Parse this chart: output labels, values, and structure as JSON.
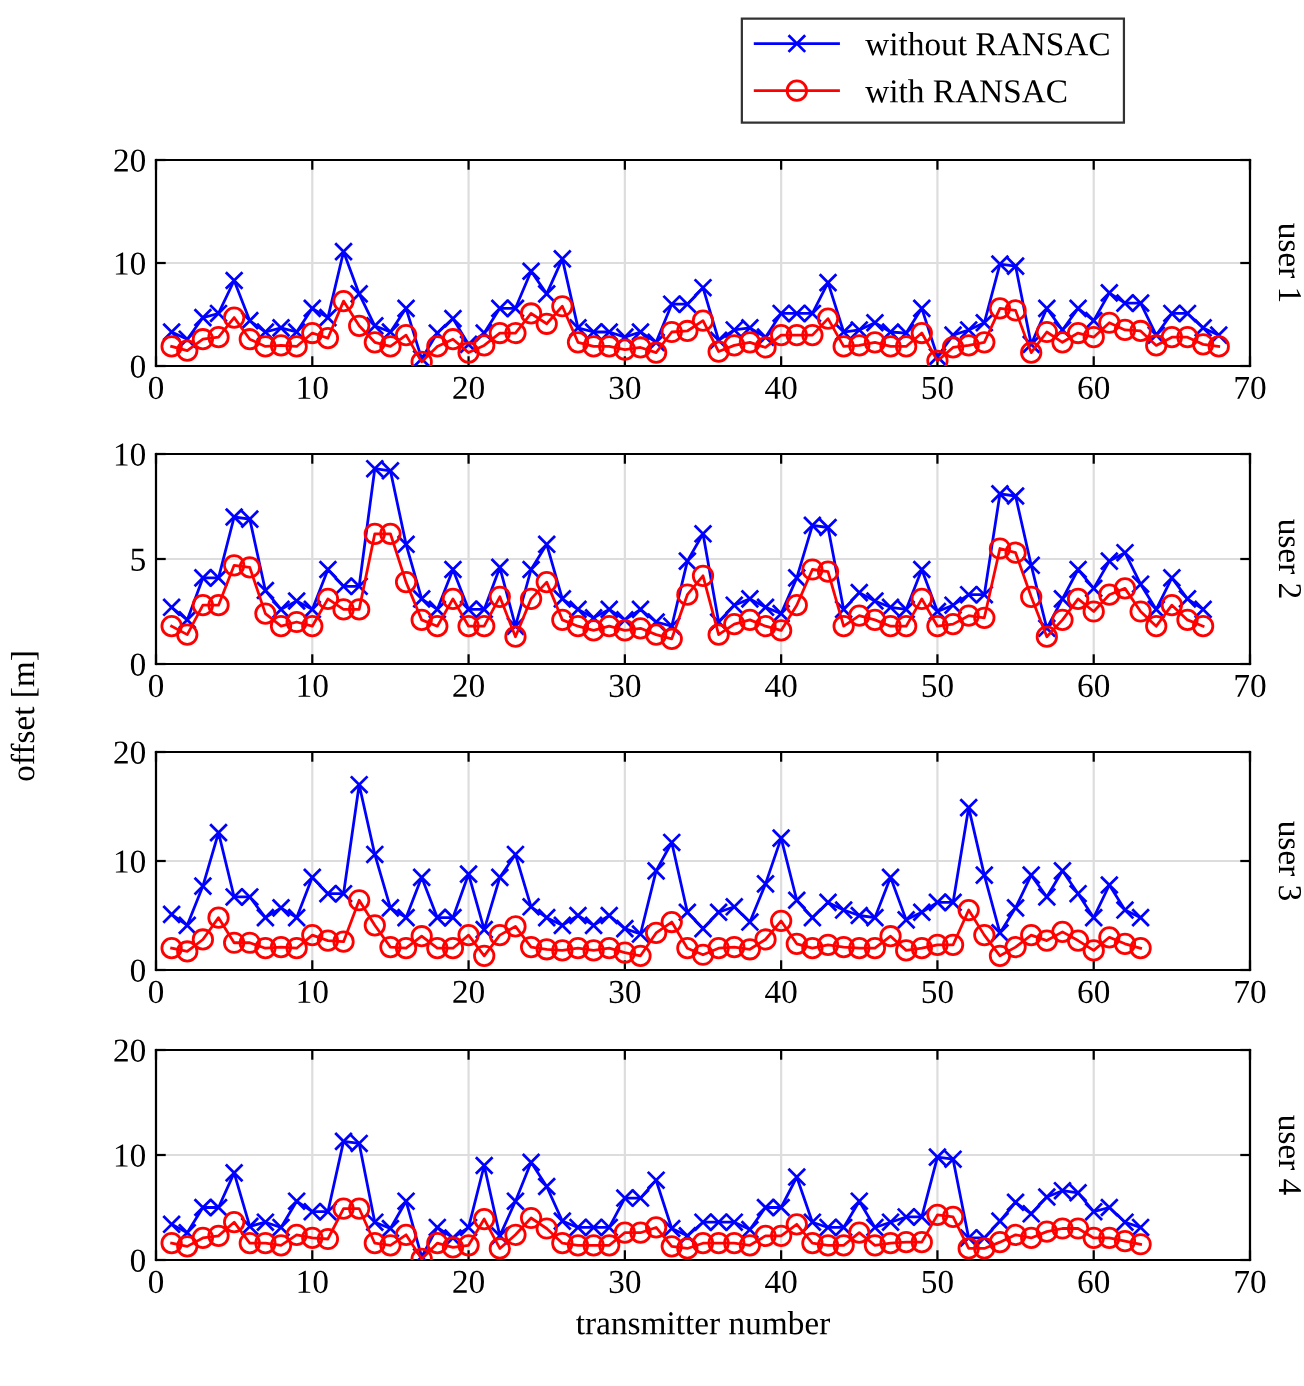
{
  "chart_data": [
    {
      "type": "line",
      "title": "user 1",
      "x": [
        1,
        2,
        3,
        4,
        5,
        6,
        7,
        8,
        9,
        10,
        11,
        12,
        13,
        14,
        15,
        16,
        17,
        18,
        19,
        20,
        21,
        22,
        23,
        24,
        25,
        26,
        27,
        28,
        29,
        30,
        31,
        32,
        33,
        34,
        35,
        36,
        37,
        38,
        39,
        40,
        41,
        42,
        43,
        44,
        45,
        46,
        47,
        48,
        49,
        50,
        51,
        52,
        53,
        54,
        55,
        56,
        57,
        58,
        59,
        60,
        61,
        62,
        63,
        64,
        65,
        66,
        67,
        68
      ],
      "xlim": [
        0,
        70
      ],
      "xticks": [
        0,
        10,
        20,
        30,
        40,
        50,
        60,
        70
      ],
      "ylim": [
        0,
        20
      ],
      "yticks": [
        0,
        10,
        20
      ],
      "grid": true,
      "legend": "top right",
      "line_style": "solid",
      "series": [
        {
          "name": "without RANSAC",
          "color": "#0000ff",
          "marker": "cross",
          "values": [
            3.3,
            2.6,
            4.7,
            5.1,
            8.3,
            4.4,
            3.3,
            3.7,
            3.3,
            5.6,
            4.7,
            11.1,
            7.0,
            3.9,
            3.3,
            5.6,
            0.7,
            3.2,
            4.6,
            2.1,
            3.2,
            5.6,
            5.6,
            9.2,
            7.0,
            10.4,
            3.7,
            3.3,
            3.3,
            2.8,
            3.3,
            2.3,
            6.0,
            6.0,
            7.6,
            2.5,
            3.5,
            3.7,
            2.8,
            5.1,
            5.1,
            5.1,
            8.1,
            3.3,
            3.5,
            4.2,
            3.3,
            3.2,
            5.6,
            0.9,
            3.0,
            3.5,
            4.2,
            9.9,
            9.7,
            2.1,
            5.6,
            3.5,
            5.6,
            4.4,
            7.1,
            6.1,
            6.1,
            3.0,
            5.1,
            5.1,
            3.7,
            3.0
          ]
        },
        {
          "name": "with RANSAC",
          "color": "#ff0000",
          "marker": "circle",
          "values": [
            1.9,
            1.5,
            2.6,
            2.8,
            4.7,
            2.6,
            1.9,
            2.0,
            1.9,
            3.2,
            2.7,
            6.3,
            3.9,
            2.3,
            1.9,
            3.0,
            0.4,
            1.9,
            2.6,
            1.3,
            2.0,
            3.2,
            3.2,
            5.1,
            4.1,
            5.8,
            2.3,
            1.9,
            1.9,
            1.6,
            1.8,
            1.3,
            3.3,
            3.4,
            4.4,
            1.4,
            2.0,
            2.3,
            1.8,
            3.0,
            3.0,
            3.0,
            4.6,
            1.9,
            2.0,
            2.3,
            1.9,
            1.9,
            3.2,
            0.5,
            1.8,
            2.0,
            2.3,
            5.6,
            5.4,
            1.3,
            3.3,
            2.3,
            3.2,
            2.8,
            4.2,
            3.5,
            3.4,
            2.0,
            2.8,
            2.8,
            2.1,
            1.9
          ]
        }
      ]
    },
    {
      "type": "line",
      "title": "user 2",
      "ylabel": "offset [m]",
      "x": [
        1,
        2,
        3,
        4,
        5,
        6,
        7,
        8,
        9,
        10,
        11,
        12,
        13,
        14,
        15,
        16,
        17,
        18,
        19,
        20,
        21,
        22,
        23,
        24,
        25,
        26,
        27,
        28,
        29,
        30,
        31,
        32,
        33,
        34,
        35,
        36,
        37,
        38,
        39,
        40,
        41,
        42,
        43,
        44,
        45,
        46,
        47,
        48,
        49,
        50,
        51,
        52,
        53,
        54,
        55,
        56,
        57,
        58,
        59,
        60,
        61,
        62,
        63,
        64,
        65,
        66,
        67
      ],
      "xlim": [
        0,
        70
      ],
      "xticks": [
        0,
        10,
        20,
        30,
        40,
        50,
        60,
        70
      ],
      "ylim": [
        0,
        10
      ],
      "yticks": [
        0,
        5,
        10
      ],
      "grid": true,
      "line_style": "solid",
      "series": [
        {
          "color": "#0000ff",
          "marker": "cross",
          "values": [
            2.7,
            2.1,
            4.1,
            4.1,
            7.0,
            6.9,
            3.5,
            2.6,
            3.0,
            2.6,
            4.5,
            3.7,
            3.7,
            9.3,
            9.2,
            5.7,
            3.1,
            2.6,
            4.5,
            2.6,
            2.6,
            4.6,
            1.8,
            4.5,
            5.7,
            3.1,
            2.6,
            2.2,
            2.6,
            2.1,
            2.6,
            2.0,
            1.8,
            4.9,
            6.2,
            2.0,
            2.8,
            3.1,
            2.7,
            2.4,
            4.1,
            6.6,
            6.5,
            2.6,
            3.4,
            3.0,
            2.7,
            2.6,
            4.5,
            2.5,
            2.8,
            3.3,
            3.3,
            8.1,
            8.0,
            4.7,
            1.7,
            3.1,
            4.5,
            3.6,
            4.9,
            5.3,
            3.8,
            2.6,
            4.1,
            3.1,
            2.6
          ]
        },
        {
          "color": "#ff0000",
          "marker": "circle",
          "values": [
            1.8,
            1.4,
            2.8,
            2.8,
            4.7,
            4.6,
            2.4,
            1.8,
            2.0,
            1.8,
            3.1,
            2.6,
            2.6,
            6.2,
            6.2,
            3.9,
            2.1,
            1.8,
            3.1,
            1.8,
            1.8,
            3.2,
            1.3,
            3.1,
            3.9,
            2.1,
            1.8,
            1.6,
            1.8,
            1.6,
            1.7,
            1.4,
            1.2,
            3.3,
            4.2,
            1.4,
            1.9,
            2.1,
            1.8,
            1.6,
            2.8,
            4.5,
            4.4,
            1.8,
            2.3,
            2.1,
            1.8,
            1.8,
            3.1,
            1.8,
            1.9,
            2.3,
            2.2,
            5.5,
            5.3,
            3.2,
            1.3,
            2.1,
            3.1,
            2.5,
            3.3,
            3.6,
            2.5,
            1.8,
            2.8,
            2.1,
            1.8
          ]
        }
      ]
    },
    {
      "type": "line",
      "title": "user 3",
      "x": [
        1,
        2,
        3,
        4,
        5,
        6,
        7,
        8,
        9,
        10,
        11,
        12,
        13,
        14,
        15,
        16,
        17,
        18,
        19,
        20,
        21,
        22,
        23,
        24,
        25,
        26,
        27,
        28,
        29,
        30,
        31,
        32,
        33,
        34,
        35,
        36,
        37,
        38,
        39,
        40,
        41,
        42,
        43,
        44,
        45,
        46,
        47,
        48,
        49,
        50,
        51,
        52,
        53,
        54,
        55,
        56,
        57,
        58,
        59,
        60,
        61,
        62,
        63
      ],
      "xlim": [
        0,
        70
      ],
      "xticks": [
        0,
        10,
        20,
        30,
        40,
        50,
        60,
        70
      ],
      "ylim": [
        0,
        20
      ],
      "yticks": [
        0,
        10,
        20
      ],
      "grid": true,
      "line_style": "solid",
      "series": [
        {
          "color": "#0000ff",
          "marker": "cross",
          "values": [
            5.1,
            4.1,
            7.7,
            12.6,
            6.7,
            6.7,
            4.8,
            5.7,
            4.8,
            8.5,
            7.0,
            7.0,
            17.0,
            10.6,
            5.7,
            4.8,
            8.5,
            4.8,
            4.8,
            8.8,
            3.7,
            8.5,
            10.6,
            5.8,
            4.8,
            4.1,
            5.0,
            4.1,
            5.0,
            3.8,
            3.3,
            9.1,
            11.7,
            5.3,
            3.8,
            5.3,
            5.8,
            4.4,
            7.9,
            12.1,
            6.4,
            4.8,
            6.2,
            5.5,
            5.0,
            4.8,
            8.5,
            4.6,
            5.3,
            6.2,
            6.2,
            14.9,
            8.7,
            3.4,
            5.7,
            8.7,
            6.7,
            9.1,
            7.0,
            4.8,
            7.8,
            5.5,
            4.8
          ]
        },
        {
          "color": "#ff0000",
          "marker": "circle",
          "values": [
            2.0,
            1.7,
            2.8,
            4.8,
            2.5,
            2.5,
            2.0,
            2.1,
            2.0,
            3.2,
            2.7,
            2.6,
            6.4,
            4.1,
            2.1,
            2.0,
            3.1,
            2.0,
            2.0,
            3.2,
            1.3,
            3.2,
            4.0,
            2.1,
            1.9,
            1.8,
            2.0,
            1.8,
            2.0,
            1.6,
            1.3,
            3.4,
            4.4,
            2.0,
            1.4,
            2.0,
            2.1,
            1.9,
            2.8,
            4.5,
            2.4,
            2.0,
            2.3,
            2.1,
            2.0,
            2.0,
            3.1,
            1.8,
            2.0,
            2.3,
            2.3,
            5.5,
            3.2,
            1.3,
            2.1,
            3.2,
            2.7,
            3.5,
            2.7,
            1.8,
            3.0,
            2.4,
            2.0
          ]
        }
      ]
    },
    {
      "type": "line",
      "title": "user 4",
      "xlabel": "transmitter number",
      "x": [
        1,
        2,
        3,
        4,
        5,
        6,
        7,
        8,
        9,
        10,
        11,
        12,
        13,
        14,
        15,
        16,
        17,
        18,
        19,
        20,
        21,
        22,
        23,
        24,
        25,
        26,
        27,
        28,
        29,
        30,
        31,
        32,
        33,
        34,
        35,
        36,
        37,
        38,
        39,
        40,
        41,
        42,
        43,
        44,
        45,
        46,
        47,
        48,
        49,
        50,
        51,
        52,
        53,
        54,
        55,
        56,
        57,
        58,
        59,
        60,
        61,
        62,
        63
      ],
      "xlim": [
        0,
        70
      ],
      "xticks": [
        0,
        10,
        20,
        30,
        40,
        50,
        60,
        70
      ],
      "ylim": [
        0,
        20
      ],
      "yticks": [
        0,
        10,
        20
      ],
      "grid": true,
      "line_style": "solid",
      "series": [
        {
          "color": "#0000ff",
          "marker": "cross",
          "values": [
            3.4,
            2.6,
            5.0,
            5.0,
            8.3,
            3.2,
            3.6,
            3.1,
            5.6,
            4.6,
            4.6,
            11.3,
            11.1,
            3.6,
            3.0,
            5.6,
            0.3,
            3.1,
            2.1,
            3.1,
            9.0,
            2.3,
            5.6,
            9.3,
            7.0,
            3.7,
            3.1,
            3.1,
            3.1,
            5.9,
            5.9,
            7.6,
            3.0,
            2.3,
            3.6,
            3.6,
            3.6,
            2.9,
            5.0,
            5.0,
            7.9,
            3.6,
            3.1,
            3.1,
            5.6,
            3.1,
            3.6,
            4.1,
            4.1,
            9.8,
            9.6,
            2.1,
            2.1,
            3.7,
            5.5,
            4.4,
            6.0,
            6.6,
            6.4,
            4.6,
            5.0,
            3.6,
            3.1
          ]
        },
        {
          "color": "#ff0000",
          "marker": "circle",
          "values": [
            1.6,
            1.3,
            2.1,
            2.3,
            3.6,
            1.6,
            1.6,
            1.4,
            2.4,
            2.1,
            2.0,
            4.9,
            4.9,
            1.6,
            1.4,
            2.4,
            0.1,
            1.6,
            1.2,
            1.4,
            3.9,
            1.1,
            2.4,
            4.0,
            3.0,
            1.6,
            1.4,
            1.4,
            1.4,
            2.6,
            2.6,
            3.1,
            1.3,
            1.1,
            1.6,
            1.6,
            1.6,
            1.4,
            2.3,
            2.3,
            3.4,
            1.6,
            1.4,
            1.4,
            2.6,
            1.4,
            1.6,
            1.7,
            1.7,
            4.3,
            4.1,
            1.1,
            1.1,
            1.7,
            2.4,
            2.1,
            2.7,
            3.0,
            3.0,
            2.1,
            2.1,
            1.8,
            1.5
          ]
        }
      ]
    }
  ]
}
